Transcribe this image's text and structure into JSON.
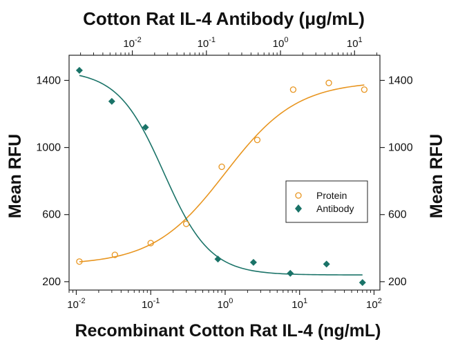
{
  "chart_data": {
    "type": "scatter",
    "title": "Cotton Rat IL-4 Antibody (μg/mL)",
    "xlabel": "Recombinant Cotton Rat IL-4 (ng/mL)",
    "ylabel_left": "Mean RFU",
    "ylabel_right": "Mean RFU",
    "x_scale": "log",
    "xlim": [
      0.008,
      120
    ],
    "ylim": [
      150,
      1550
    ],
    "x_ticks": [
      {
        "base": "10",
        "exp": "-2",
        "value": 0.01
      },
      {
        "base": "10",
        "exp": "-1",
        "value": 0.1
      },
      {
        "base": "10",
        "exp": "0",
        "value": 1
      },
      {
        "base": "10",
        "exp": "1",
        "value": 10
      },
      {
        "base": "10",
        "exp": "2",
        "value": 100
      }
    ],
    "top_x_scale": "log",
    "top_xlim": [
      0.0014,
      22
    ],
    "top_x_ticks": [
      {
        "base": "10",
        "exp": "-2",
        "value": 0.01
      },
      {
        "base": "10",
        "exp": "-1",
        "value": 0.1
      },
      {
        "base": "10",
        "exp": "0",
        "value": 1
      },
      {
        "base": "10",
        "exp": "1",
        "value": 10
      }
    ],
    "y_ticks": [
      {
        "label": "200",
        "value": 200
      },
      {
        "label": "600",
        "value": 600
      },
      {
        "label": "1000",
        "value": 1000
      },
      {
        "label": "1400",
        "value": 1400
      }
    ],
    "legend_position": "right",
    "series": [
      {
        "name": "Protein",
        "marker": "open-circle",
        "color": "#e8951f",
        "x": [
          0.011,
          0.033,
          0.1,
          0.3,
          0.9,
          2.7,
          8.2,
          24.7,
          74
        ],
        "y": [
          320,
          360,
          430,
          545,
          885,
          1045,
          1345,
          1385,
          1345
        ],
        "fit": {
          "bottom": 300,
          "top": 1395,
          "ec50": 1.0,
          "hill": 0.9
        }
      },
      {
        "name": "Antibody",
        "marker": "filled-diamond",
        "color": "#1a7368",
        "x": [
          0.011,
          0.03,
          0.085,
          0.8,
          2.4,
          7.5,
          23,
          70
        ],
        "y": [
          1460,
          1275,
          1120,
          335,
          315,
          250,
          305,
          195
        ],
        "fit": {
          "bottom": 240,
          "top": 1460,
          "ec50": 0.15,
          "hill": 1.4
        }
      }
    ]
  }
}
